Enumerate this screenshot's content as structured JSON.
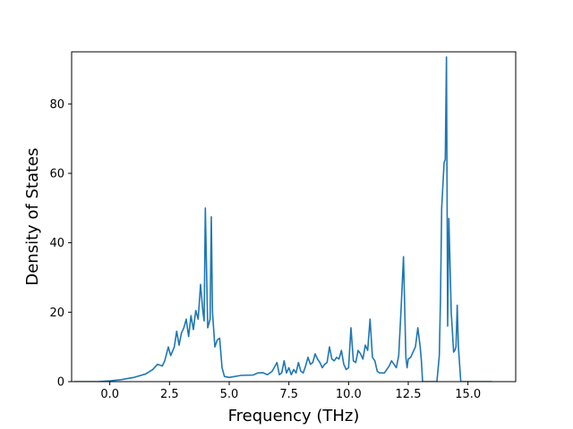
{
  "chart_data": {
    "type": "line",
    "title": "",
    "xlabel": "Frequency (THz)",
    "ylabel": "Density of States",
    "xlim": [
      -1.6,
      17.0
    ],
    "ylim": [
      0,
      95
    ],
    "x_ticks": [
      0.0,
      2.5,
      5.0,
      7.5,
      10.0,
      12.5,
      15.0
    ],
    "x_tick_labels": [
      "0.0",
      "2.5",
      "5.0",
      "7.5",
      "10.0",
      "12.5",
      "15.0"
    ],
    "y_ticks": [
      0,
      20,
      40,
      60,
      80
    ],
    "y_tick_labels": [
      "0",
      "20",
      "40",
      "60",
      "80"
    ],
    "grid": false,
    "legend": "none",
    "series": [
      {
        "color": "#1f77b4",
        "x": [
          -1.5,
          -0.5,
          0.0,
          0.5,
          1.0,
          1.5,
          1.8,
          2.0,
          2.2,
          2.3,
          2.45,
          2.55,
          2.7,
          2.8,
          2.9,
          3.0,
          3.1,
          3.2,
          3.3,
          3.4,
          3.5,
          3.6,
          3.7,
          3.8,
          3.9,
          3.95,
          4.0,
          4.1,
          4.2,
          4.25,
          4.3,
          4.4,
          4.5,
          4.6,
          4.7,
          4.8,
          5.0,
          5.5,
          6.0,
          6.2,
          6.4,
          6.6,
          6.8,
          7.0,
          7.1,
          7.2,
          7.3,
          7.4,
          7.5,
          7.6,
          7.7,
          7.8,
          7.9,
          8.0,
          8.1,
          8.2,
          8.3,
          8.4,
          8.5,
          8.6,
          8.7,
          8.8,
          8.9,
          9.0,
          9.1,
          9.2,
          9.3,
          9.4,
          9.5,
          9.6,
          9.7,
          9.8,
          9.9,
          10.0,
          10.1,
          10.2,
          10.3,
          10.4,
          10.5,
          10.6,
          10.7,
          10.8,
          10.9,
          11.0,
          11.1,
          11.2,
          11.3,
          11.5,
          11.7,
          11.8,
          11.9,
          12.0,
          12.1,
          12.2,
          12.3,
          12.4,
          12.45,
          12.5,
          12.6,
          12.7,
          12.8,
          12.9,
          13.0,
          13.05,
          13.1,
          13.2,
          13.5,
          13.7,
          13.8,
          13.85,
          13.9,
          14.0,
          14.05,
          14.1,
          14.15,
          14.2,
          14.3,
          14.4,
          14.45,
          14.5,
          14.55,
          14.6,
          14.7,
          15.0,
          16.0
        ],
        "y": [
          0,
          0,
          0.2,
          0.6,
          1.2,
          2.2,
          3.5,
          5.0,
          4.5,
          6.0,
          10.0,
          7.5,
          10.0,
          14.5,
          10.5,
          14.0,
          15.5,
          18.0,
          13.0,
          19.0,
          15.0,
          20.5,
          18.0,
          28.0,
          20.0,
          17.5,
          50.0,
          15.5,
          18.0,
          47.5,
          20.0,
          10.0,
          12.0,
          12.5,
          4.0,
          1.5,
          1.2,
          1.8,
          1.9,
          2.5,
          2.6,
          2.0,
          3.0,
          5.5,
          2.0,
          2.5,
          6.0,
          2.5,
          4.0,
          2.0,
          3.5,
          2.5,
          5.5,
          3.0,
          2.5,
          4.5,
          7.0,
          5.0,
          5.5,
          8.0,
          6.5,
          5.5,
          4.0,
          5.0,
          5.5,
          10.0,
          6.5,
          6.0,
          7.0,
          6.5,
          9.0,
          5.0,
          3.5,
          4.0,
          15.5,
          6.0,
          5.5,
          9.0,
          8.0,
          6.5,
          10.5,
          9.0,
          18.0,
          7.0,
          6.0,
          3.0,
          2.5,
          2.5,
          4.5,
          6.0,
          5.0,
          4.0,
          7.5,
          21.0,
          36.0,
          7.0,
          4.0,
          6.5,
          7.0,
          8.5,
          10.0,
          15.5,
          10.0,
          6.0,
          0,
          0,
          0,
          0,
          7.5,
          24.0,
          50.0,
          63.0,
          64.0,
          93.5,
          16.0,
          47.0,
          20.0,
          8.5,
          9.0,
          10.0,
          22.0,
          10.0,
          0,
          0,
          0
        ]
      }
    ]
  }
}
